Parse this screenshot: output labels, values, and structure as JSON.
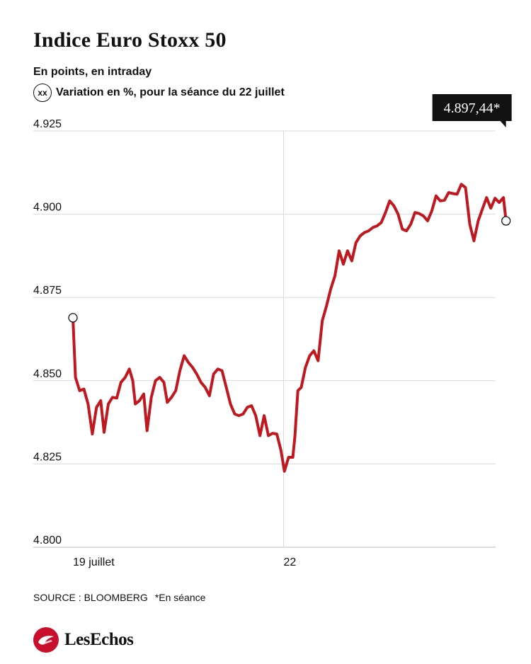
{
  "header": {
    "title": "Indice Euro Stoxx 50",
    "subtitle": "En points, en intraday",
    "legend_badge": "xx",
    "legend_text": "Variation en %, pour la séance du 22 juillet"
  },
  "chart_data": {
    "type": "line",
    "title": "Indice Euro Stoxx 50",
    "subtitle": "En points, en intraday",
    "ylim": [
      4800,
      4925
    ],
    "yticks": [
      4800,
      4825,
      4850,
      4875,
      4900,
      4925
    ],
    "ytick_labels": [
      "4.800",
      "4.825",
      "4.850",
      "4.875",
      "4.900",
      "4.925"
    ],
    "xlim": [
      0,
      100
    ],
    "xticks": [
      {
        "x": 0,
        "label": "19 juillet"
      },
      {
        "x": 50,
        "label": "22"
      }
    ],
    "grid": true,
    "callout": "4.897,44*",
    "series": [
      {
        "color": "#c0181f",
        "points": [
          [
            0,
            4868.9
          ],
          [
            0.6,
            4851
          ],
          [
            1.6,
            4847
          ],
          [
            2.6,
            4847.5
          ],
          [
            3.6,
            4843
          ],
          [
            4.6,
            4834
          ],
          [
            5.6,
            4842
          ],
          [
            6.6,
            4844
          ],
          [
            7.4,
            4834.5
          ],
          [
            8.4,
            4843
          ],
          [
            9.4,
            4845
          ],
          [
            10.4,
            4844.8
          ],
          [
            11.4,
            4849.5
          ],
          [
            12.4,
            4851
          ],
          [
            13.4,
            4853.5
          ],
          [
            14.2,
            4850
          ],
          [
            14.8,
            4843
          ],
          [
            15.8,
            4844
          ],
          [
            16.8,
            4846
          ],
          [
            17.6,
            4835
          ],
          [
            18.6,
            4845
          ],
          [
            19.6,
            4850
          ],
          [
            20.6,
            4851
          ],
          [
            21.6,
            4849.5
          ],
          [
            22.4,
            4843.5
          ],
          [
            23.4,
            4845
          ],
          [
            24.4,
            4847
          ],
          [
            25.4,
            4853
          ],
          [
            26.4,
            4857.5
          ],
          [
            27.4,
            4855.5
          ],
          [
            28.4,
            4854
          ],
          [
            29.4,
            4852
          ],
          [
            30.4,
            4849.5
          ],
          [
            31.4,
            4848
          ],
          [
            32.4,
            4845.5
          ],
          [
            33.4,
            4852
          ],
          [
            34.4,
            4853.5
          ],
          [
            35.4,
            4853
          ],
          [
            36.4,
            4848
          ],
          [
            37.4,
            4843
          ],
          [
            38.4,
            4840
          ],
          [
            39.4,
            4839.5
          ],
          [
            40.4,
            4840
          ],
          [
            41.4,
            4842
          ],
          [
            42.4,
            4842.5
          ],
          [
            43.4,
            4839.5
          ],
          [
            44.4,
            4833.5
          ],
          [
            45.4,
            4839.5
          ],
          [
            46.4,
            4833.5
          ],
          [
            47.4,
            4834.2
          ],
          [
            48.4,
            4834
          ],
          [
            49.4,
            4829
          ],
          [
            50.2,
            4822.8
          ],
          [
            51.2,
            4827
          ],
          [
            52.2,
            4827
          ],
          [
            52.7,
            4833.5
          ],
          [
            53.4,
            4847
          ],
          [
            54.2,
            4848
          ],
          [
            55.2,
            4854
          ],
          [
            56.2,
            4857.5
          ],
          [
            57.2,
            4859
          ],
          [
            58.2,
            4856
          ],
          [
            59.2,
            4868
          ],
          [
            60.2,
            4872.5
          ],
          [
            61.2,
            4877.5
          ],
          [
            62.2,
            4881.5
          ],
          [
            63.2,
            4889
          ],
          [
            64.2,
            4885
          ],
          [
            65.2,
            4889
          ],
          [
            66.2,
            4886
          ],
          [
            67.2,
            4891.5
          ],
          [
            68.2,
            4893.5
          ],
          [
            69.2,
            4894.5
          ],
          [
            70.2,
            4895
          ],
          [
            71.2,
            4896
          ],
          [
            72.2,
            4896.5
          ],
          [
            73.2,
            4897.5
          ],
          [
            74.2,
            4900.5
          ],
          [
            75.2,
            4904
          ],
          [
            76.2,
            4902.5
          ],
          [
            77.2,
            4900
          ],
          [
            78.2,
            4895.5
          ],
          [
            79.2,
            4895
          ],
          [
            80.2,
            4897
          ],
          [
            81.2,
            4900.5
          ],
          [
            82.2,
            4900.2
          ],
          [
            83.2,
            4899.5
          ],
          [
            84.2,
            4898
          ],
          [
            85.2,
            4901
          ],
          [
            86.2,
            4905.5
          ],
          [
            87.2,
            4904
          ],
          [
            88.2,
            4904.2
          ],
          [
            89.2,
            4906.5
          ],
          [
            90.2,
            4906.2
          ],
          [
            91.2,
            4906
          ],
          [
            92.2,
            4909
          ],
          [
            93.2,
            4908
          ],
          [
            94.2,
            4897
          ],
          [
            95.2,
            4892
          ],
          [
            96.2,
            4898
          ],
          [
            97.2,
            4901.5
          ],
          [
            98.2,
            4905
          ],
          [
            99.2,
            4901.8
          ],
          [
            100.2,
            4904.8
          ],
          [
            101.2,
            4903.5
          ],
          [
            102.2,
            4905
          ],
          [
            102.8,
            4898
          ]
        ]
      }
    ]
  },
  "footer": {
    "source": "SOURCE : BLOOMBERG",
    "note": "*En séance",
    "brand": "LesEchos"
  }
}
